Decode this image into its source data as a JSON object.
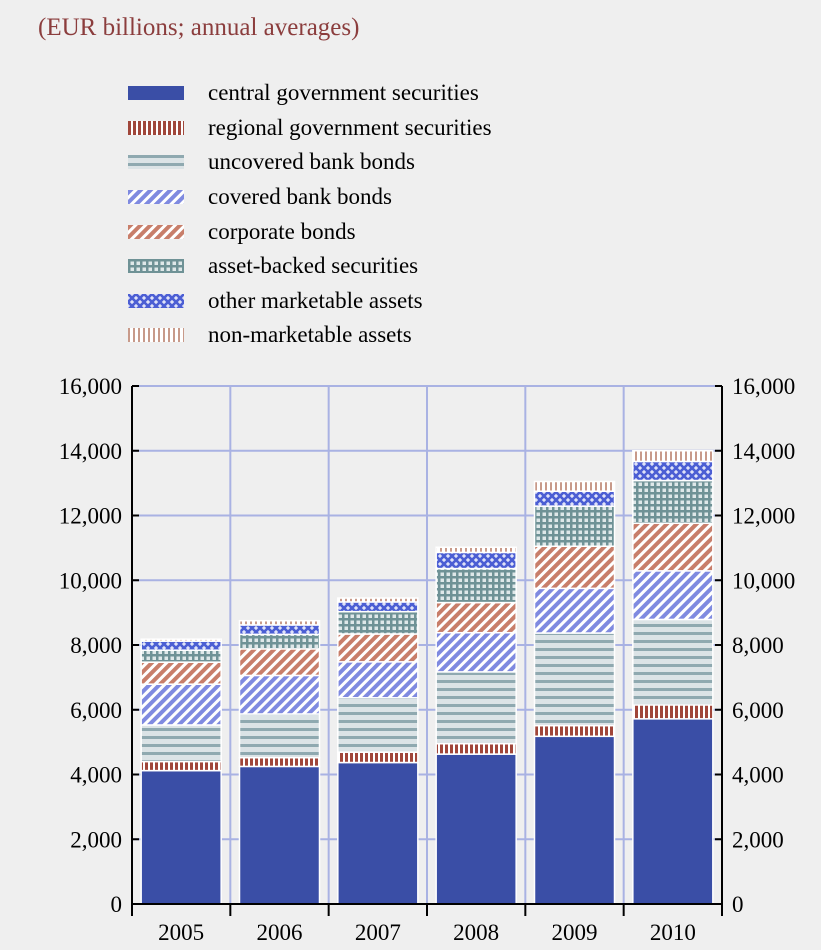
{
  "subtitle": "(EUR billions; annual averages)",
  "colors": {
    "background": "#efefef",
    "grid": "#a9b2e3",
    "subtitle": "#8b3d3d"
  },
  "chart_data": {
    "type": "bar",
    "stacked": true,
    "categories": [
      "2005",
      "2006",
      "2007",
      "2008",
      "2009",
      "2010"
    ],
    "ylim": [
      0,
      16000
    ],
    "yticks": [
      0,
      2000,
      4000,
      6000,
      8000,
      10000,
      12000,
      14000,
      16000
    ],
    "ytick_labels": [
      "0",
      "2,000",
      "4,000",
      "6,000",
      "8,000",
      "10,000",
      "12,000",
      "14,000",
      "16,000"
    ],
    "right_axis": true,
    "grid": true,
    "legend_position": "top",
    "series": [
      {
        "name": "central government securities",
        "color": "#3a4ea6",
        "pattern": "solid",
        "values": [
          4120,
          4250,
          4370,
          4630,
          5180,
          5720
        ]
      },
      {
        "name": "regional government securities",
        "color": "#a0463a",
        "pattern": "vlines",
        "values": [
          280,
          270,
          320,
          320,
          330,
          430
        ]
      },
      {
        "name": "uncovered bank bonds",
        "color": "#8fa9b0",
        "pattern": "hlines",
        "values": [
          1130,
          1350,
          1680,
          2220,
          2860,
          2640
        ]
      },
      {
        "name": "covered bank bonds",
        "color": "#7f8ae0",
        "pattern": "diag",
        "values": [
          1260,
          1190,
          1110,
          1210,
          1380,
          1500
        ]
      },
      {
        "name": "corporate bonds",
        "color": "#c87e6a",
        "pattern": "diag",
        "values": [
          680,
          820,
          860,
          930,
          1300,
          1470
        ]
      },
      {
        "name": "asset-backed securities",
        "color": "#6f9296",
        "pattern": "grid",
        "values": [
          370,
          450,
          690,
          1050,
          1240,
          1320
        ]
      },
      {
        "name": "other marketable assets",
        "color": "#4b5ed4",
        "pattern": "cross",
        "values": [
          280,
          290,
          300,
          500,
          460,
          590
        ]
      },
      {
        "name": "non-marketable assets",
        "color": "#c89a8a",
        "pattern": "dots",
        "values": [
          60,
          130,
          120,
          160,
          300,
          330
        ]
      }
    ]
  }
}
